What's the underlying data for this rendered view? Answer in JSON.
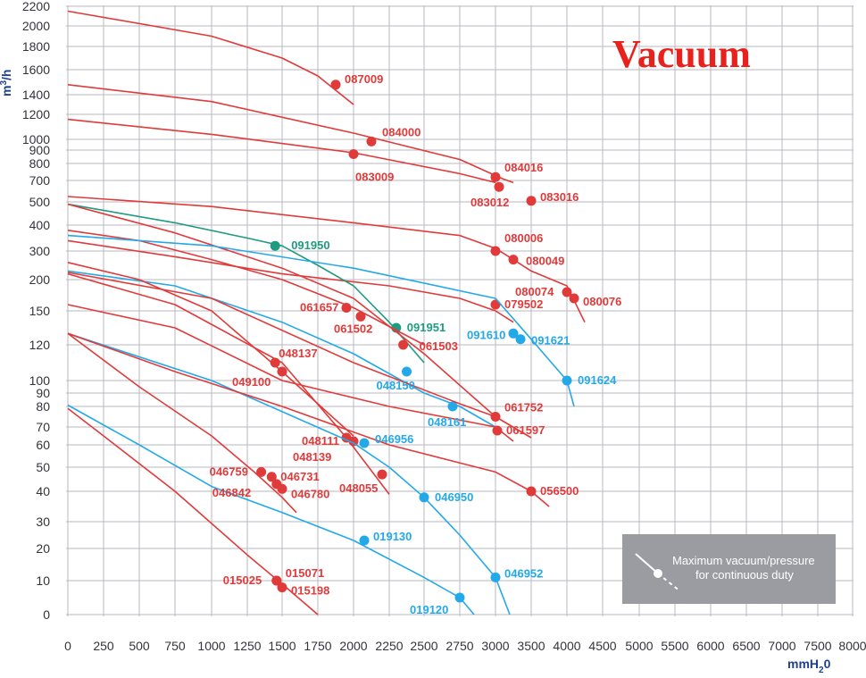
{
  "chart_data": {
    "type": "line",
    "title": "Vacuum",
    "xlabel": "mmH",
    "xlabel_sub": "2",
    "xlabel_tail": "0",
    "ylabel": "m",
    "ylabel_sup": "3",
    "ylabel_tail": "/h",
    "x_ticks": [
      "0",
      "250",
      "500",
      "750",
      "1000",
      "1250",
      "1500",
      "1750",
      "2000",
      "2250",
      "2500",
      "2750",
      "3000",
      "3500",
      "4000",
      "4500",
      "5000",
      "5500",
      "6000",
      "6500",
      "7000",
      "7500",
      "8000"
    ],
    "y_ticks": [
      "0",
      "10",
      "20",
      "30",
      "40",
      "50",
      "60",
      "70",
      "80",
      "90",
      "100",
      "120",
      "150",
      "200",
      "300",
      "400",
      "500",
      "700",
      "800",
      "900",
      "1000",
      "1200",
      "1400",
      "1600",
      "1800",
      "2000",
      "2200"
    ],
    "grid": true,
    "colors": {
      "red": "#e03a3a",
      "blue": "#23a9e8",
      "green": "#1e9b80",
      "grid": "#b9b9c2",
      "legend_bg": "#9b9ca1"
    },
    "legend": {
      "text_line1": "Maximum vacuum/pressure",
      "text_line2": "for continuous duty",
      "position": "bottom-right"
    },
    "series": [
      {
        "name": "087009",
        "color": "red",
        "x": [
          0,
          1000,
          1500,
          1750,
          2000
        ],
        "y": [
          2150,
          1900,
          1700,
          1550,
          1300
        ],
        "marker": [
          1875,
          1480
        ]
      },
      {
        "name": "084000",
        "color": "red",
        "x": [
          0,
          1000,
          2000,
          2750,
          3100,
          3250
        ],
        "y": [
          1480,
          1330,
          1050,
          830,
          710,
          680
        ],
        "marker": [
          2125,
          980
        ]
      },
      {
        "name": "083009",
        "color": "red",
        "x": [
          0,
          1000,
          2000,
          2750,
          3000
        ],
        "y": [
          1160,
          1040,
          880,
          740,
          680
        ],
        "marker": [
          2000,
          870
        ]
      },
      {
        "name": "084016",
        "color": "red",
        "x": [
          3000,
          3250
        ],
        "y": [
          720,
          690
        ],
        "marker": [
          3000,
          720
        ],
        "label_only": true
      },
      {
        "name": "083012",
        "color": "red",
        "x": [
          2500,
          3000,
          3250,
          4000
        ],
        "y": [
          780,
          680,
          620,
          420
        ],
        "marker": [
          3050,
          640
        ],
        "label_only": true
      },
      {
        "name": "083016",
        "color": "red",
        "x": [
          3500
        ],
        "y": [
          510
        ],
        "marker": [
          3500,
          510
        ],
        "label_only": true
      },
      {
        "name": "080006",
        "color": "red",
        "x": [
          0,
          1000,
          2000,
          2750,
          3000,
          3250,
          3500,
          4000,
          4250
        ],
        "y": [
          550,
          480,
          410,
          360,
          310,
          270,
          230,
          190,
          140
        ],
        "marker": [
          3000,
          300
        ]
      },
      {
        "name": "080049",
        "color": "red",
        "x": [
          3250
        ],
        "y": [
          270
        ],
        "marker": [
          3250,
          270
        ],
        "label_only": true
      },
      {
        "name": "080074",
        "color": "red",
        "x": [
          4000
        ],
        "y": [
          180
        ],
        "marker": [
          4000,
          180
        ],
        "label_only": true
      },
      {
        "name": "080076",
        "color": "red",
        "x": [
          4000
        ],
        "y": [
          170
        ],
        "marker": [
          4100,
          170
        ],
        "label_only": true
      },
      {
        "name": "079502",
        "color": "red",
        "x": [
          0,
          750,
          1500,
          2250,
          2750,
          3000,
          3250
        ],
        "y": [
          340,
          280,
          220,
          190,
          170,
          150,
          140
        ],
        "marker": [
          3000,
          160
        ]
      },
      {
        "name": "091950",
        "color": "green",
        "x": [
          0,
          750,
          1250,
          1500,
          1750,
          2000,
          2250,
          2500
        ],
        "y": [
          490,
          410,
          350,
          320,
          250,
          190,
          140,
          110
        ],
        "marker": [
          1450,
          320
        ]
      },
      {
        "name": "091951",
        "color": "green",
        "x": [
          2300
        ],
        "y": [
          135
        ],
        "marker": [
          2300,
          135
        ],
        "label_only": true
      },
      {
        "name": "061657",
        "color": "red",
        "x": [
          0,
          500,
          1000,
          1500,
          2000,
          2500
        ],
        "y": [
          380,
          340,
          270,
          200,
          155,
          120
        ],
        "marker": [
          1950,
          155
        ]
      },
      {
        "name": "061502",
        "color": "red",
        "x": [
          2050
        ],
        "y": [
          145
        ],
        "marker": [
          2050,
          145
        ],
        "label_only": true
      },
      {
        "name": "061503",
        "color": "red",
        "x": [
          0,
          750,
          1500,
          2000,
          2500,
          3000
        ],
        "y": [
          490,
          370,
          240,
          170,
          115,
          75
        ],
        "marker": [
          2350,
          120
        ]
      },
      {
        "name": "091610",
        "color": "blue",
        "x": [
          0,
          1000,
          2000,
          3000,
          3500,
          4000,
          4100
        ],
        "y": [
          360,
          320,
          240,
          170,
          125,
          100,
          80
        ],
        "marker": [
          3250,
          130
        ]
      },
      {
        "name": "091621",
        "color": "blue",
        "x": [
          3350
        ],
        "y": [
          125
        ],
        "marker": [
          3350,
          125
        ],
        "label_only": true
      },
      {
        "name": "091624",
        "color": "blue",
        "x": [
          4000
        ],
        "y": [
          100
        ],
        "marker": [
          4000,
          100
        ],
        "label_only": true
      },
      {
        "name": "048150",
        "color": "blue",
        "x": [
          0,
          750,
          1500,
          2000,
          2500,
          2750,
          3000
        ],
        "y": [
          230,
          190,
          140,
          115,
          90,
          80,
          70
        ],
        "marker": [
          2375,
          105
        ]
      },
      {
        "name": "048161",
        "color": "blue",
        "x": [
          2700
        ],
        "y": [
          80
        ],
        "marker": [
          2700,
          80
        ],
        "label_only": true
      },
      {
        "name": "061752",
        "color": "red",
        "x": [
          0,
          1000,
          2000,
          2750,
          3000,
          3500
        ],
        "y": [
          225,
          170,
          110,
          82,
          75,
          64
        ],
        "marker": [
          3000,
          75
        ]
      },
      {
        "name": "061597",
        "color": "red",
        "x": [
          0,
          750,
          1500,
          2250,
          3000,
          3250
        ],
        "y": [
          160,
          135,
          100,
          80,
          70,
          62
        ],
        "marker": [
          3025,
          68
        ]
      },
      {
        "name": "048137",
        "color": "red",
        "x": [
          0,
          500,
          1000,
          1500,
          2000
        ],
        "y": [
          260,
          200,
          150,
          105,
          65
        ],
        "marker": [
          1450,
          110
        ]
      },
      {
        "name": "049100",
        "color": "red",
        "x": [
          1500
        ],
        "y": [
          105
        ],
        "marker": [
          1500,
          105
        ],
        "label_only": true
      },
      {
        "name": "048111",
        "color": "red",
        "x": [
          0,
          750,
          1500,
          1950,
          2250
        ],
        "y": [
          220,
          160,
          110,
          64,
          39
        ],
        "marker": [
          1950,
          64
        ]
      },
      {
        "name": "048139",
        "color": "red",
        "x": [
          2000
        ],
        "y": [
          62
        ],
        "marker": [
          2000,
          62
        ],
        "label_only": true
      },
      {
        "name": "048055",
        "color": "red",
        "x": [
          2200
        ],
        "y": [
          47
        ],
        "marker": [
          2200,
          47
        ],
        "label_only": true
      },
      {
        "name": "046956",
        "color": "blue",
        "x": [
          0,
          1000,
          2000,
          2250,
          2500,
          2750,
          3000,
          3200
        ],
        "y": [
          130,
          100,
          61,
          50,
          38,
          25,
          11,
          0
        ],
        "marker": [
          2075,
          61
        ]
      },
      {
        "name": "046950",
        "color": "blue",
        "x": [
          2500
        ],
        "y": [
          38
        ],
        "marker": [
          2500,
          38
        ],
        "label_only": true
      },
      {
        "name": "046952",
        "color": "blue",
        "x": [
          3000
        ],
        "y": [
          11
        ],
        "marker": [
          3000,
          11
        ],
        "label_only": true
      },
      {
        "name": "056500",
        "color": "red",
        "x": [
          0,
          750,
          1500,
          2250,
          3000,
          3500,
          3750
        ],
        "y": [
          130,
          105,
          80,
          60,
          48,
          40,
          35
        ],
        "marker": [
          3500,
          40
        ]
      },
      {
        "name": "046759",
        "color": "red",
        "x": [
          0,
          500,
          1000,
          1300,
          1500,
          1600
        ],
        "y": [
          130,
          95,
          65,
          48,
          38,
          33
        ],
        "marker": [
          1350,
          48
        ]
      },
      {
        "name": "046731",
        "color": "red",
        "x": [
          1425
        ],
        "y": [
          46
        ],
        "marker": [
          1425,
          46
        ],
        "label_only": true
      },
      {
        "name": "046842",
        "color": "red",
        "x": [
          1460
        ],
        "y": [
          43
        ],
        "marker": [
          1460,
          43
        ],
        "label_only": true
      },
      {
        "name": "046780",
        "color": "red",
        "x": [
          1500
        ],
        "y": [
          41
        ],
        "marker": [
          1500,
          41
        ],
        "label_only": true
      },
      {
        "name": "019130",
        "color": "blue",
        "x": [
          0,
          500,
          1000,
          1500,
          2000,
          2500,
          2750,
          2850
        ],
        "y": [
          81,
          60,
          42,
          33,
          23,
          11,
          5,
          0
        ],
        "marker": [
          2075,
          23
        ]
      },
      {
        "name": "019120",
        "color": "blue",
        "x": [
          2750
        ],
        "y": [
          5
        ],
        "marker": [
          2750,
          5
        ],
        "label_only": true
      },
      {
        "name": "015071",
        "color": "red",
        "x": [
          0,
          250,
          750,
          1250,
          1500,
          1750
        ],
        "y": [
          79,
          65,
          40,
          18,
          9,
          0
        ],
        "marker": [
          1460,
          10
        ]
      },
      {
        "name": "015025",
        "color": "red",
        "x": [
          1460
        ],
        "y": [
          10
        ],
        "marker": [
          1460,
          10
        ],
        "label_only": true
      },
      {
        "name": "015198",
        "color": "red",
        "x": [
          1500
        ],
        "y": [
          8
        ],
        "marker": [
          1500,
          8
        ],
        "label_only": true
      }
    ]
  }
}
